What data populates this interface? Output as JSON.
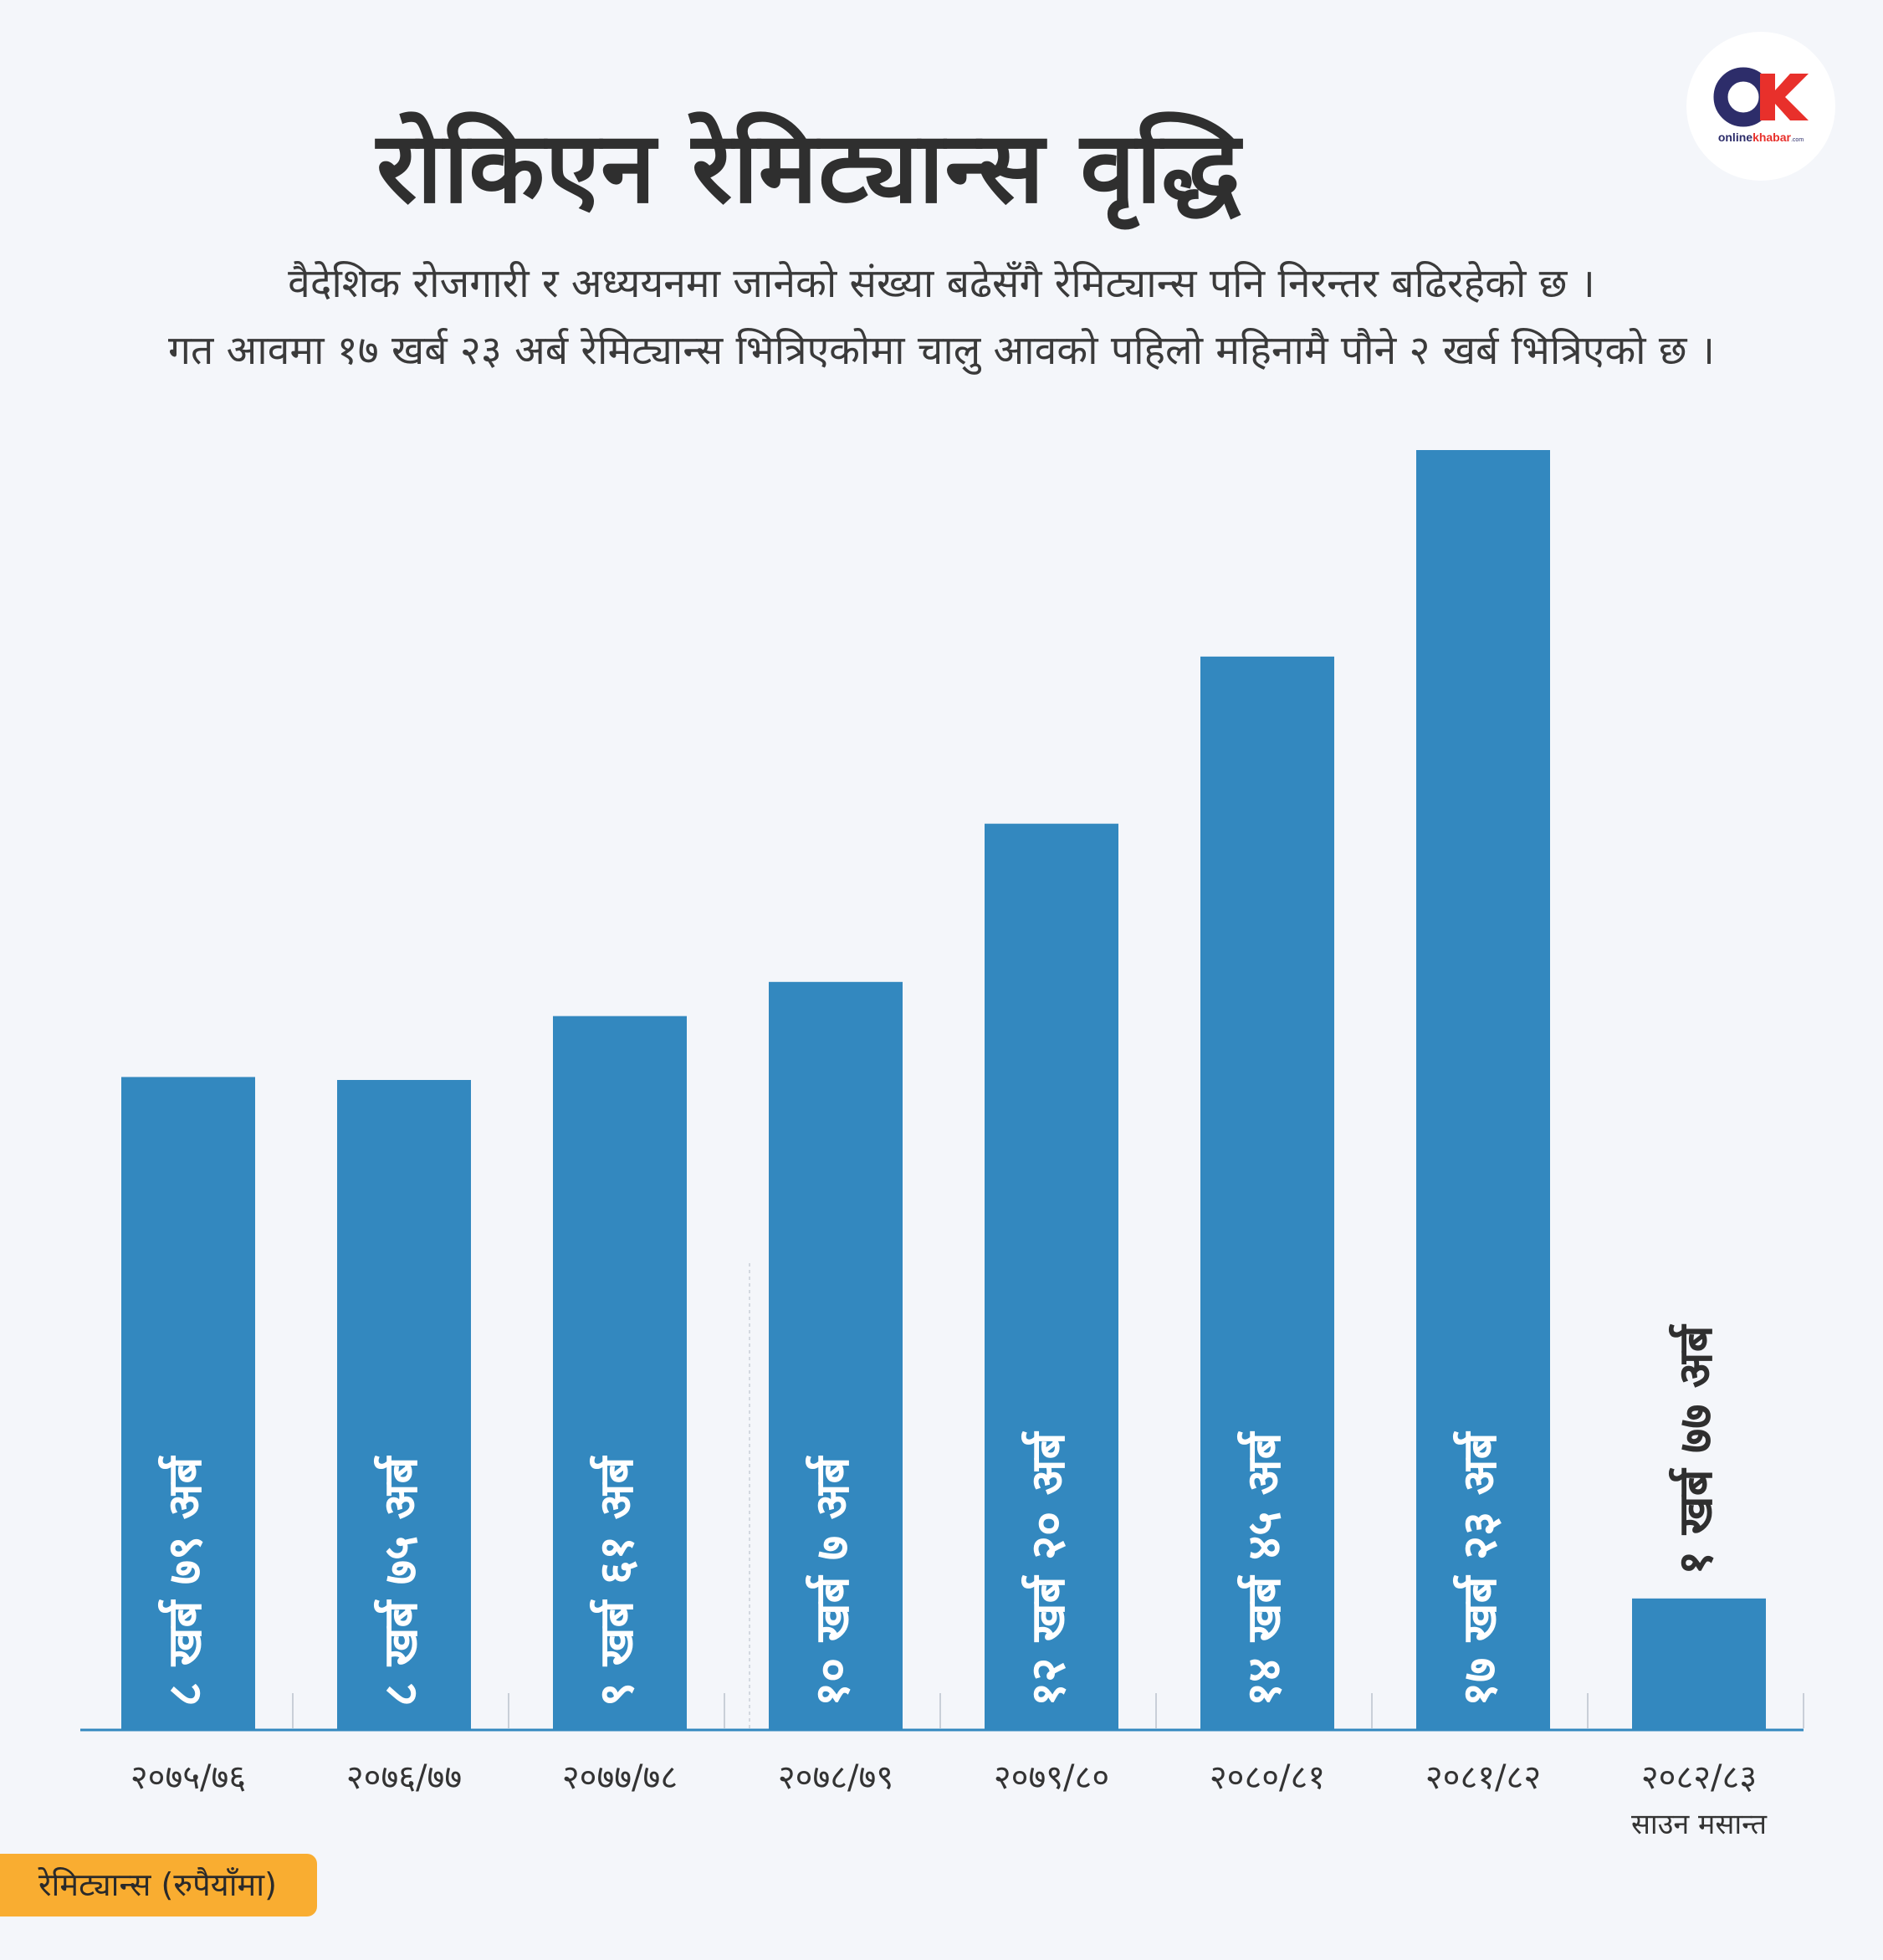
{
  "title": "रोकिएन रेमिट्यान्स वृद्धि",
  "subtitle_line1": "वैदेशिक रोजगारी र अध्ययनमा जानेको संख्या बढेसँगै रेमिट्यान्स पनि निरन्तर बढिरहेको छ ।",
  "subtitle_line2": "गत आवमा १७ खर्ब २३ अर्ब  रेमिट्यान्स भित्रिएकोमा चालु आवको पहिलो महिनामै पौने २ खर्ब भित्रिएको छ ।",
  "logo": {
    "text_main": "online",
    "text_accent": "khabar",
    "text_suffix": ".com",
    "mark": "OK"
  },
  "legend_label": "रेमिट्यान्स (रुपैयाँमा)",
  "colors": {
    "bar": "#3388bf",
    "axis": "#3388bf",
    "background": "#f4f6fa",
    "badge": "#f9ad31",
    "logo_dark": "#2d2d6a",
    "logo_red": "#e8302b"
  },
  "chart_data": {
    "type": "bar",
    "title": "रोकिएन रेमिट्यान्स वृद्धि",
    "unit": "अर्ब रुपैयाँ",
    "categories": [
      "२०७५/७६",
      "२०७६/७७",
      "२०७७/७८",
      "२०७८/७९",
      "२०७९/८०",
      "२०८०/८१",
      "२०८१/८२",
      "२०८२/८३"
    ],
    "category_notes": [
      "",
      "",
      "",
      "",
      "",
      "",
      "",
      "साउन मसान्त"
    ],
    "values": [
      879,
      875,
      961,
      1007,
      1220,
      1445,
      1723,
      177
    ],
    "value_labels": [
      "८ खर्ब ७९ अर्ब",
      "८ खर्ब ७५ अर्ब",
      "९ खर्ब ६१ अर्ब",
      "१० खर्ब ७ अर्ब",
      "१२ खर्ब २० अर्ब",
      "१४ खर्ब ४५ अर्ब",
      "१७ खर्ब २३ अर्ब",
      "१ खर्ब ७७ अर्ब"
    ],
    "ylim": [
      0,
      1723
    ],
    "grid": false,
    "legend": "bottom-left"
  }
}
